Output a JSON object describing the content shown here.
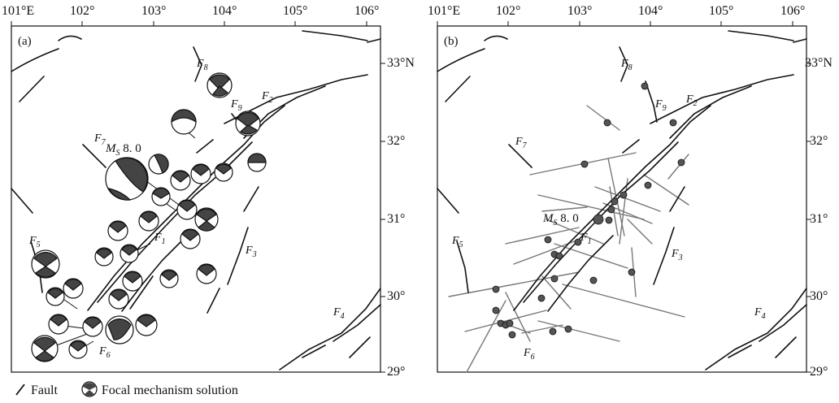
{
  "panel_a": {
    "label": "(a)",
    "lon_ticks": [
      "101°E",
      "102°",
      "103°",
      "104°",
      "105°",
      "106°"
    ],
    "lat_ticks": [
      "33°N",
      "32°",
      "31°",
      "30°",
      "29°"
    ],
    "fault_labels": {
      "f1": {
        "letter": "F",
        "sub": "1"
      },
      "f2": {
        "letter": "F",
        "sub": "2"
      },
      "f3": {
        "letter": "F",
        "sub": "3"
      },
      "f4": {
        "letter": "F",
        "sub": "4"
      },
      "f5": {
        "letter": "F",
        "sub": "5"
      },
      "f6": {
        "letter": "F",
        "sub": "6"
      },
      "f7": {
        "letter": "F",
        "sub": "7"
      },
      "f8": {
        "letter": "F",
        "sub": "8"
      },
      "f9": {
        "letter": "F",
        "sub": "9"
      }
    },
    "mainshock": {
      "prefix": "M",
      "sub": "S",
      "value": "8. 0"
    }
  },
  "panel_b": {
    "label": "(b)",
    "lon_ticks": [
      "101°E",
      "102°",
      "103°",
      "104°",
      "105°",
      "106°"
    ],
    "lat_ticks": [
      "33°N",
      "32°",
      "31°",
      "30°",
      "29°"
    ],
    "fault_labels": {
      "f1": {
        "letter": "F",
        "sub": "1"
      },
      "f2": {
        "letter": "F",
        "sub": "2"
      },
      "f3": {
        "letter": "F",
        "sub": "3"
      },
      "f4": {
        "letter": "F",
        "sub": "4"
      },
      "f5": {
        "letter": "F",
        "sub": "5"
      },
      "f6": {
        "letter": "F",
        "sub": "6"
      },
      "f7": {
        "letter": "F",
        "sub": "7"
      },
      "f8": {
        "letter": "F",
        "sub": "8"
      },
      "f9": {
        "letter": "F",
        "sub": "9"
      }
    },
    "mainshock": {
      "prefix": "M",
      "sub": "S",
      "value": "8. 0"
    }
  },
  "legend": {
    "fault_label": "Fault",
    "focal_label": "Focal mechanism solution"
  },
  "colors": {
    "fault_line": "#111111",
    "beachball_fill": "#444444",
    "event_dot": "#555555",
    "stress_bar": "#777777"
  }
}
